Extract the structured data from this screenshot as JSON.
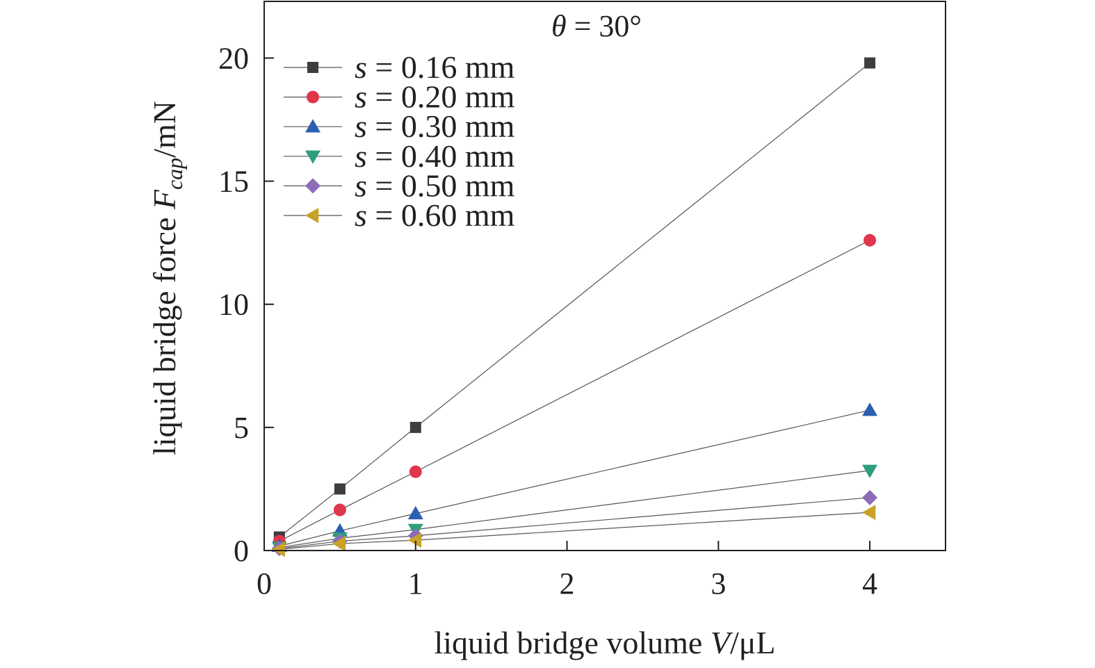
{
  "chart_data": {
    "type": "line",
    "annotation": {
      "symbol": "θ",
      "text": " = 30°"
    },
    "xlabel": {
      "prefix": "liquid bridge volume ",
      "var": "V",
      "unit": "/μL"
    },
    "ylabel": {
      "prefix": "liquid bridge force ",
      "var": "F",
      "sub": "cap",
      "unit": "/mN"
    },
    "xlim": [
      0,
      4.5
    ],
    "ylim": [
      0,
      22.3
    ],
    "xticks": [
      0,
      1,
      2,
      3,
      4
    ],
    "yticks": [
      0,
      5,
      10,
      15,
      20
    ],
    "x": [
      0.1,
      0.5,
      1,
      4
    ],
    "legend_position": "top-left",
    "series": [
      {
        "name": "0.16 mm",
        "var": "s",
        "marker": "square",
        "color": "#3d3d3d",
        "values": [
          0.55,
          2.5,
          5.0,
          19.8
        ]
      },
      {
        "name": "0.20 mm",
        "var": "s",
        "marker": "circle",
        "color": "#e0364a",
        "values": [
          0.38,
          1.65,
          3.2,
          12.6
        ]
      },
      {
        "name": "0.30 mm",
        "var": "s",
        "marker": "triangle-up",
        "color": "#2d5fb0",
        "values": [
          0.18,
          0.8,
          1.5,
          5.7
        ]
      },
      {
        "name": "0.40 mm",
        "var": "s",
        "marker": "triangle-down",
        "color": "#2e9e7e",
        "values": [
          0.12,
          0.5,
          0.85,
          3.25
        ]
      },
      {
        "name": "0.50 mm",
        "var": "s",
        "marker": "diamond",
        "color": "#8c6cb8",
        "values": [
          0.08,
          0.38,
          0.6,
          2.15
        ]
      },
      {
        "name": "0.60 mm",
        "var": "s",
        "marker": "triangle-left",
        "color": "#c9a227",
        "values": [
          0.05,
          0.28,
          0.42,
          1.55
        ]
      }
    ]
  }
}
